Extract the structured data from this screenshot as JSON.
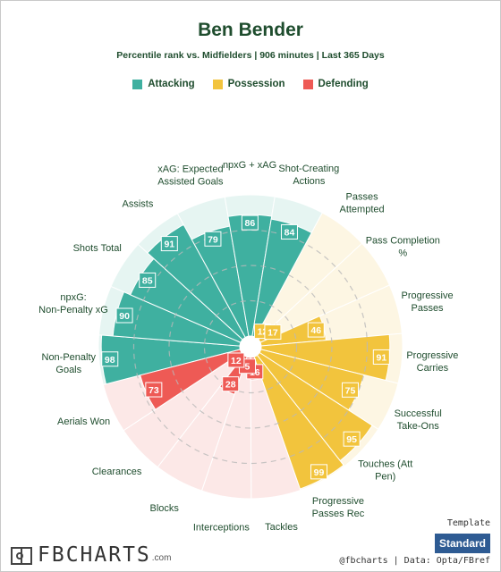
{
  "title": "Ben Bender",
  "subtitle": "Percentile rank vs. Midfielders | 906 minutes | Last 365 Days",
  "legend": [
    {
      "label": "Attacking",
      "color": "#3fb0a0"
    },
    {
      "label": "Possession",
      "color": "#f2c43d"
    },
    {
      "label": "Defending",
      "color": "#ee5a55"
    }
  ],
  "chart_data": {
    "type": "polar-bar",
    "range": [
      0,
      100
    ],
    "series": [
      {
        "name": "Attacking",
        "color": "#3fb0a0",
        "bg": "#e6f5f2"
      },
      {
        "name": "Possession",
        "color": "#f2c43d",
        "bg": "#fdf6e3"
      },
      {
        "name": "Defending",
        "color": "#ee5a55",
        "bg": "#fce8e7"
      }
    ],
    "categories": [
      {
        "label": "Non-Penalty Goals",
        "value": 98,
        "group": "Attacking"
      },
      {
        "label": "npxG: Non-Penalty xG",
        "value": 90,
        "group": "Attacking"
      },
      {
        "label": "Shots Total",
        "value": 85,
        "group": "Attacking"
      },
      {
        "label": "Assists",
        "value": 91,
        "group": "Attacking"
      },
      {
        "label": "xAG: Expected Assisted Goals",
        "value": 79,
        "group": "Attacking"
      },
      {
        "label": "npxG + xAG",
        "value": 86,
        "group": "Attacking"
      },
      {
        "label": "Shot-Creating Actions",
        "value": 84,
        "group": "Attacking"
      },
      {
        "label": "Passes Attempted",
        "value": 12,
        "group": "Possession"
      },
      {
        "label": "Pass Completion %",
        "value": 17,
        "group": "Possession"
      },
      {
        "label": "Progressive Passes",
        "value": 46,
        "group": "Possession"
      },
      {
        "label": "Progressive Carries",
        "value": 91,
        "group": "Possession"
      },
      {
        "label": "Successful Take-Ons",
        "value": 75,
        "group": "Possession"
      },
      {
        "label": "Touches (Att Pen)",
        "value": 95,
        "group": "Possession"
      },
      {
        "label": "Progressive Passes Rec",
        "value": 99,
        "group": "Possession"
      },
      {
        "label": "Tackles",
        "value": 16,
        "group": "Defending"
      },
      {
        "label": "Interceptions",
        "value": 5,
        "group": "Defending"
      },
      {
        "label": "Blocks",
        "value": 28,
        "group": "Defending"
      },
      {
        "label": "Clearances",
        "value": 12,
        "group": "Defending"
      },
      {
        "label": "Aerials Won",
        "value": 73,
        "group": "Defending"
      }
    ],
    "grid": true
  },
  "footer": {
    "logo_text": "FBCHARTS",
    "logo_suffix": ".com",
    "credits": "@fbcharts | Data: Opta/FBref",
    "template_label": "Template",
    "template_button": "Standard"
  }
}
